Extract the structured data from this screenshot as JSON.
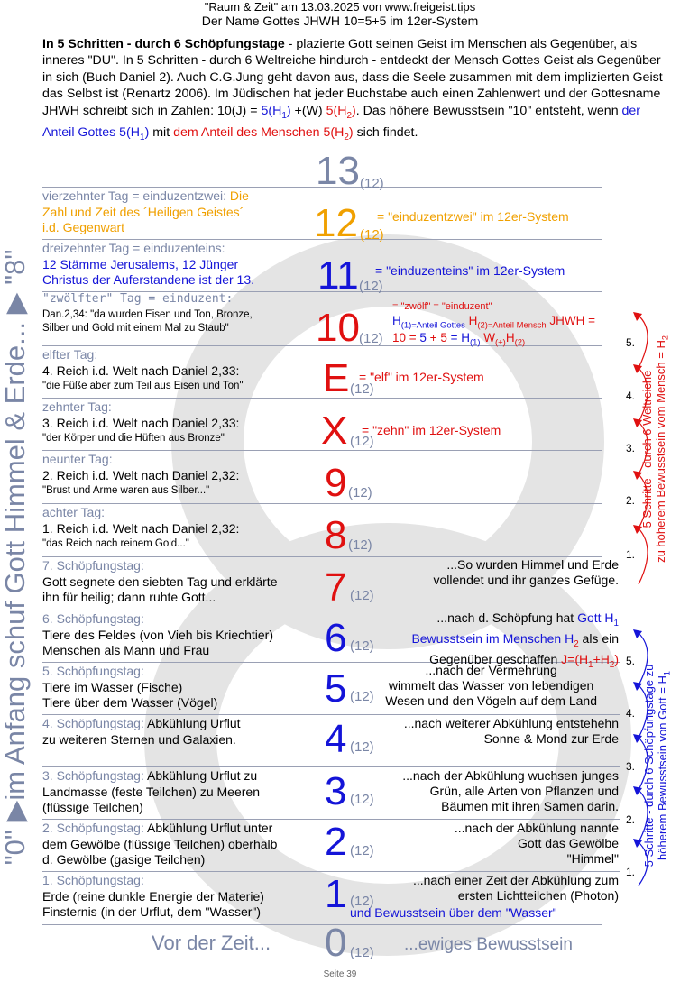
{
  "header": {
    "line1": "\"Raum & Zeit\" am 13.03.2025 von www.freigeist.tips",
    "line2": "Der Name Gottes JHWH 10=5+5 im 12er-System"
  },
  "intro": {
    "bold": "In 5 Schritten - durch 6 Schöpfungstage",
    "text1": " - plazierte Gott seinen Geist im Menschen als Gegenüber, als inneres \"DU\". In 5 Schritten - durch 6 Weltreiche hindurch - entdeckt der Mensch Gottes Geist als Gegenüber in sich (Buch Daniel 2). Auch C.G.Jung geht davon aus, dass die Seele zusammen mit dem implizierten Geist das Selbst ist (Renartz 2006). Im Jüdischen hat jeder Buchstabe auch einen Zahlenwert und der Gottesname JHWH schreibt sich in Zahlen: 10(J) = ",
    "blue1": "5(H",
    "blue1sub": "1",
    "close1": ")",
    "text2": " +(W) ",
    "red1": "5(H",
    "red1sub": "2",
    "close2": ")",
    "text3": ". Das höhere Bewusstsein \"10\" entsteht, wenn ",
    "blue2": "der Anteil Gottes 5(H",
    "blue2sub": "1",
    "close3": ")",
    "text4": " mit ",
    "red2": "dem Anteil des Menschen 5(H",
    "red2sub": "2",
    "close4": ")",
    "text5": " sich findet."
  },
  "numbers": [
    {
      "n": "13",
      "sub": "(12)"
    },
    {
      "n": "12",
      "sub": "(12)"
    },
    {
      "n": "11",
      "sub": "(12)"
    },
    {
      "n": "10",
      "sub": "(12)"
    },
    {
      "n": "E",
      "sub": "(12)"
    },
    {
      "n": "X",
      "sub": "(12)"
    },
    {
      "n": "9",
      "sub": "(12)"
    },
    {
      "n": "8",
      "sub": "(12)"
    },
    {
      "n": "7",
      "sub": "(12)"
    },
    {
      "n": "6",
      "sub": "(12)"
    },
    {
      "n": "5",
      "sub": "(12)"
    },
    {
      "n": "4",
      "sub": "(12)"
    },
    {
      "n": "3",
      "sub": "(12)"
    },
    {
      "n": "2",
      "sub": "(12)"
    },
    {
      "n": "1",
      "sub": "(12)"
    },
    {
      "n": "0",
      "sub": "(12)"
    }
  ],
  "rows": {
    "r12": {
      "title": "vierzehnter Tag = einduzentzwei: ",
      "title2": "Die",
      "text": "Zahl und Zeit des ´Heiligen Geistes´\ni.d. Gegenwart",
      "note": "= \"einduzentzwei\" im 12er-System"
    },
    "r11": {
      "title": "dreizehnter Tag = einduzenteins:",
      "text": "12 Stämme Jerusalems, 12 Jünger\nChristus der Auferstandene ist der 13.",
      "note": "= \"einduzenteins\" im 12er-System"
    },
    "r10": {
      "title": "\"zwölfter\" Tag = einduzent:",
      "text": "Dan.2,34: \"da wurden Eisen und Ton, Bronze,\nSilber und Gold mit einem Mal zu Staub\"",
      "note1": "= \"zwölf\" = \"einduzent\"",
      "note2a": "H",
      "note2b": "(1)=Anteil Gottes",
      "note2c": " H",
      "note2d": "(2)=Anteil Mensch",
      "note2e": " JHWH =",
      "note3a": "10 = ",
      "note3b": "5",
      "note3c": " + ",
      "note3d": "5",
      "note3e": " = H",
      "note3f": "(1)",
      "note3g": " W",
      "note3h": "(+)",
      "note3i": "H",
      "note3j": "(2)"
    },
    "rE": {
      "title": "elfter Tag:",
      "text1": "4. Reich i.d. Welt nach Daniel 2,33:",
      "text2": "\"die Füße aber zum Teil aus Eisen und Ton\"",
      "note": "= \"elf\" im 12er-System"
    },
    "rX": {
      "title": "zehnter Tag:",
      "text1": "3. Reich i.d. Welt nach Daniel 2,33:",
      "text2": "\"der Körper und die Hüften aus Bronze\"",
      "note": "= \"zehn\" im 12er-System"
    },
    "r9": {
      "title": "neunter Tag:",
      "text1": "2. Reich i.d. Welt nach Daniel 2,32:",
      "text2": "\"Brust und Arme waren aus Silber...\""
    },
    "r8": {
      "title": "achter Tag:",
      "text1": "1. Reich i.d. Welt nach Daniel 2,32:",
      "text2": "\"das Reich nach reinem Gold...\""
    },
    "r7": {
      "title": "7. Schöpfungstag:",
      "text": "Gott segnete den siebten Tag und erklärte\nihn für heilig; dann ruhte Gott...",
      "right": "...So wurden Himmel und Erde\nvollendet und ihr ganzes Gefüge."
    },
    "r6": {
      "title": "6. Schöpfungstag:",
      "text": "Tiere des Feldes (von Vieh bis Kriechtier)\nMenschen als Mann und Frau",
      "right1": "...nach d. Schöpfung hat ",
      "right1b": "Gott H",
      "right1bs": "1",
      "right2": "Bewusstsein im Menschen H",
      "right2s": "2",
      "right2b": " als ein",
      "right3": "Gegenüber geschaffen ",
      "right3b": "J=(H",
      "right3bs": "1",
      "right3c": "+H",
      "right3cs": "2",
      "right3d": ")"
    },
    "r5": {
      "title": "5. Schöpfungstag:",
      "text": "Tiere im Wasser (Fische)\nTiere über dem Wasser (Vögel)",
      "right": "...nach der Vermehrung\nwimmelt das Wasser von lebendigen\nWesen und den Vögeln auf dem Land"
    },
    "r4": {
      "title": "4. Schöpfungstag:",
      "title2": " Abkühlung Urflut",
      "text": "zu weiteren Sternen und Galaxien.",
      "right": "...nach weiterer Abkühlung entstehehn\nSonne & Mond zur Erde"
    },
    "r3": {
      "title": "3. Schöpfungstag:",
      "title2": " Abkühlung Urflut zu",
      "text": "Landmasse (feste Teilchen) zu Meeren\n(flüssige Teilchen)",
      "right": "...nach der Abkühlung wuchsen junges\nGrün, alle Arten von Pflanzen und\nBäumen mit ihren Samen darin."
    },
    "r2": {
      "title": "2. Schöpfungstag:",
      "title2": " Abkühlung Urflut unter",
      "text": "dem Gewölbe (flüssige Teilchen) oberhalb\nd. Gewölbe (gasige Teilchen)",
      "right": "...nach der Abkühlung nannte\nGott das Gewölbe\n\"Himmel\""
    },
    "r1": {
      "title": "1. Schöpfungstag:",
      "text": "Erde (reine dunkle Energie der Materie)\nFinsternis (in der Urflut, dem \"Wasser\")",
      "right": "...nach einer Zeit der Abkühlung zum\nersten Lichtteilchen (Photon)",
      "right2": "und Bewusstsein über dem \"Wasser\""
    },
    "r0": {
      "left": "Vor der Zeit...",
      "right": "...ewiges Bewusstsein"
    }
  },
  "side_left": "\"0\" ▶im Anfang schuf Gott Himmel & Erde... ▶ \"8\"",
  "side_right_top": {
    "line1": "5 Schritte - durch 6 Weltreiche",
    "line2": "zu höherem Bewusstsein vom Mensch = H",
    "line2sub": "2"
  },
  "side_right_bottom": {
    "line1": "5 Schritte - durch 6 Schöpfungstage zu",
    "line2": "höherem Bewusstsein von Gott = H",
    "line2sub": "1"
  },
  "steps": [
    "5.",
    "4.",
    "3.",
    "2.",
    "1."
  ],
  "footer": "Seite 39",
  "colors": {
    "blue": "#1414d8",
    "red": "#e01010",
    "orange": "#f0a000",
    "grey": "#7a86a6",
    "watermark": "#e4e4e4"
  }
}
